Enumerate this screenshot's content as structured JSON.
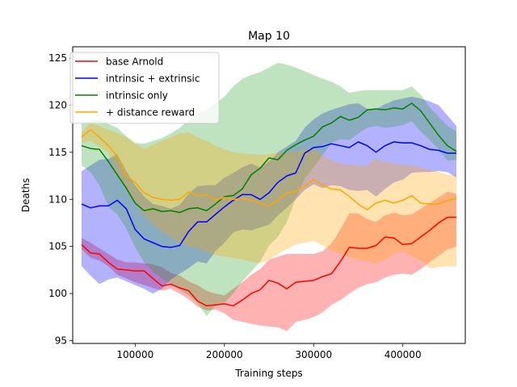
{
  "chart_data": {
    "type": "line",
    "title": "Map 10",
    "xlabel": "Training steps",
    "ylabel": "Deaths",
    "xlim": [
      30000,
      470000
    ],
    "ylim": [
      94.7,
      126.2
    ],
    "xticks": [
      100000,
      200000,
      300000,
      400000
    ],
    "xtick_labels": [
      "100000",
      "200000",
      "300000",
      "400000"
    ],
    "yticks": [
      95,
      100,
      105,
      110,
      115,
      120,
      125
    ],
    "ytick_labels": [
      "95",
      "100",
      "105",
      "110",
      "115",
      "120",
      "125"
    ],
    "legend_position": "top-left",
    "grid": false,
    "x": [
      40000,
      50000,
      60000,
      70000,
      80000,
      90000,
      100000,
      110000,
      120000,
      130000,
      140000,
      150000,
      160000,
      170000,
      180000,
      190000,
      200000,
      210000,
      220000,
      230000,
      240000,
      250000,
      260000,
      270000,
      280000,
      290000,
      300000,
      310000,
      320000,
      330000,
      340000,
      350000,
      360000,
      370000,
      380000,
      390000,
      400000,
      410000,
      420000,
      430000,
      440000,
      450000,
      460000
    ],
    "series": [
      {
        "name": "base Arnold",
        "color": "#ff0000",
        "values": [
          105.2,
          104.3,
          104.2,
          103.3,
          102.6,
          102.5,
          102.4,
          102.4,
          101.6,
          100.8,
          101.0,
          100.6,
          100.3,
          99.2,
          98.7,
          98.8,
          98.9,
          98.7,
          99.3,
          100.0,
          100.4,
          101.4,
          101.1,
          100.5,
          101.2,
          101.3,
          101.4,
          101.8,
          102.1,
          103.4,
          104.9,
          104.8,
          104.8,
          105.1,
          106.0,
          105.9,
          105.2,
          105.3,
          106.0,
          106.7,
          107.5,
          108.1,
          108.1
        ],
        "lower": [
          104.7,
          103.8,
          103.5,
          102.9,
          102.0,
          101.6,
          101.2,
          100.9,
          100.6,
          100.3,
          100.5,
          100.0,
          99.4,
          98.6,
          98.2,
          98.3,
          97.9,
          97.2,
          97.0,
          96.8,
          96.6,
          96.5,
          96.4,
          96.0,
          97.0,
          97.2,
          97.5,
          98.0,
          98.8,
          99.3,
          100.0,
          100.6,
          101.0,
          101.2,
          101.7,
          102.0,
          102.1,
          102.0,
          102.6,
          103.3,
          104.0,
          104.7,
          105.0
        ],
        "upper": [
          105.9,
          105.4,
          104.8,
          104.2,
          103.6,
          103.3,
          103.3,
          103.2,
          103.1,
          102.8,
          102.2,
          101.9,
          101.3,
          100.9,
          100.3,
          100.0,
          99.8,
          100.5,
          101.2,
          102.0,
          102.6,
          103.6,
          103.9,
          104.2,
          104.2,
          104.2,
          104.2,
          104.5,
          105.3,
          106.8,
          108.5,
          108.5,
          107.9,
          107.6,
          108.3,
          108.6,
          108.3,
          108.4,
          109.0,
          109.6,
          110.2,
          110.8,
          110.6
        ]
      },
      {
        "name": "intrinsic + extrinsic",
        "color": "#0000ff",
        "values": [
          109.5,
          109.1,
          109.3,
          109.3,
          109.9,
          109.0,
          106.8,
          105.8,
          105.4,
          105.0,
          104.9,
          105.1,
          106.6,
          107.6,
          107.6,
          108.4,
          109.2,
          109.9,
          110.5,
          110.5,
          110.0,
          110.7,
          111.8,
          112.5,
          112.8,
          114.9,
          115.5,
          115.6,
          115.9,
          115.7,
          115.5,
          116.1,
          115.7,
          115.0,
          115.7,
          116.1,
          116.0,
          116.0,
          115.7,
          115.3,
          115.2,
          114.9,
          114.9
        ],
        "lower": [
          102.9,
          101.9,
          101.0,
          101.5,
          101.7,
          101.3,
          100.9,
          100.5,
          100.0,
          100.5,
          101.5,
          102.1,
          102.7,
          103.4,
          103.2,
          104.5,
          105.4,
          106.5,
          106.8,
          106.7,
          107.0,
          107.3,
          108.3,
          109.1,
          110.0,
          111.0,
          111.6,
          111.2,
          111.5,
          111.4,
          111.0,
          110.9,
          111.0,
          110.3,
          111.1,
          111.8,
          112.1,
          112.8,
          112.9,
          112.9,
          113.0,
          112.9,
          112.3
        ],
        "upper": [
          113.0,
          113.6,
          114.2,
          114.3,
          114.8,
          113.0,
          111.5,
          110.3,
          109.5,
          109.3,
          109.0,
          109.4,
          110.6,
          111.4,
          111.5,
          111.5,
          112.3,
          112.8,
          113.4,
          113.8,
          113.4,
          114.0,
          115.0,
          115.6,
          116.2,
          117.6,
          118.5,
          119.1,
          119.5,
          119.8,
          120.1,
          120.2,
          119.6,
          119.6,
          120.1,
          120.5,
          120.7,
          120.9,
          120.7,
          120.4,
          120.0,
          118.9,
          117.8
        ]
      },
      {
        "name": "intrinsic only",
        "color": "#008000",
        "values": [
          115.7,
          115.4,
          115.3,
          114.0,
          112.6,
          111.2,
          109.6,
          108.8,
          109.0,
          108.7,
          108.8,
          108.6,
          109.0,
          109.1,
          108.8,
          109.5,
          110.3,
          110.4,
          111.1,
          112.6,
          113.3,
          114.4,
          114.2,
          115.2,
          115.8,
          116.3,
          116.7,
          117.7,
          118.1,
          118.8,
          118.4,
          118.7,
          119.5,
          119.6,
          119.5,
          119.7,
          119.6,
          120.2,
          119.4,
          118.1,
          116.8,
          115.7,
          115.1
        ],
        "lower": [
          113.6,
          112.9,
          111.5,
          109.2,
          108.4,
          106.9,
          104.9,
          103.3,
          102.3,
          101.6,
          101.0,
          100.4,
          99.8,
          99.0,
          97.6,
          98.7,
          99.0,
          100.0,
          101.3,
          102.3,
          103.4,
          105.1,
          106.0,
          107.6,
          110.1,
          112.2,
          113.4,
          114.7,
          116.0,
          116.4,
          116.3,
          117.0,
          117.6,
          117.8,
          117.6,
          117.7,
          117.9,
          118.3,
          117.2,
          116.3,
          115.3,
          114.1,
          114.2
        ],
        "upper": [
          118.1,
          118.4,
          118.5,
          118.0,
          117.6,
          116.7,
          116.0,
          115.9,
          116.2,
          116.5,
          117.0,
          117.6,
          118.4,
          119.2,
          119.5,
          120.2,
          120.9,
          122.0,
          122.8,
          123.2,
          123.5,
          124.0,
          124.5,
          124.3,
          124.0,
          123.6,
          123.2,
          122.8,
          122.5,
          122.0,
          121.3,
          121.5,
          121.6,
          121.6,
          121.6,
          121.6,
          121.6,
          122.0,
          121.1,
          119.8,
          118.8,
          117.8,
          117.2
        ],
        "fill_color": "#2ca02c"
      },
      {
        "name": "+ distance reward",
        "color": "#ffa500",
        "values": [
          116.6,
          117.4,
          116.6,
          115.7,
          114.6,
          112.5,
          111.8,
          110.7,
          110.2,
          110.0,
          109.9,
          110.0,
          110.8,
          110.4,
          110.5,
          109.9,
          110.2,
          110.0,
          110.1,
          109.9,
          109.6,
          109.3,
          109.9,
          110.7,
          110.8,
          111.4,
          112.1,
          111.5,
          111.1,
          111.0,
          110.3,
          109.5,
          108.9,
          109.6,
          109.9,
          109.6,
          109.9,
          110.4,
          109.6,
          109.5,
          109.5,
          109.9,
          110.1
        ],
        "lower": [
          116.0,
          116.2,
          115.6,
          114.9,
          112.6,
          111.3,
          109.7,
          108.3,
          107.4,
          106.6,
          106.0,
          105.4,
          105.0,
          104.8,
          104.4,
          104.1,
          103.9,
          103.8,
          103.6,
          103.4,
          103.2,
          103.6,
          104.2,
          104.7,
          105.2,
          105.4,
          105.6,
          105.1,
          104.6,
          104.2,
          103.9,
          103.6,
          103.4,
          103.2,
          103.6,
          104.2,
          104.5,
          104.0,
          103.5,
          102.7,
          102.8,
          102.9,
          102.9
        ],
        "upper": [
          117.1,
          118.1,
          117.8,
          117.4,
          117.0,
          116.6,
          115.9,
          115.4,
          115.8,
          116.2,
          116.6,
          117.0,
          117.1,
          116.6,
          116.2,
          115.7,
          115.3,
          115.0,
          114.9,
          114.8,
          114.7,
          114.8,
          114.9,
          115.0,
          115.1,
          115.3,
          115.4,
          114.6,
          114.2,
          113.8,
          113.7,
          113.6,
          113.6,
          114.3,
          114.0,
          113.8,
          113.7,
          113.6,
          113.4,
          113.1,
          112.9,
          112.6,
          112.6
        ]
      }
    ]
  }
}
